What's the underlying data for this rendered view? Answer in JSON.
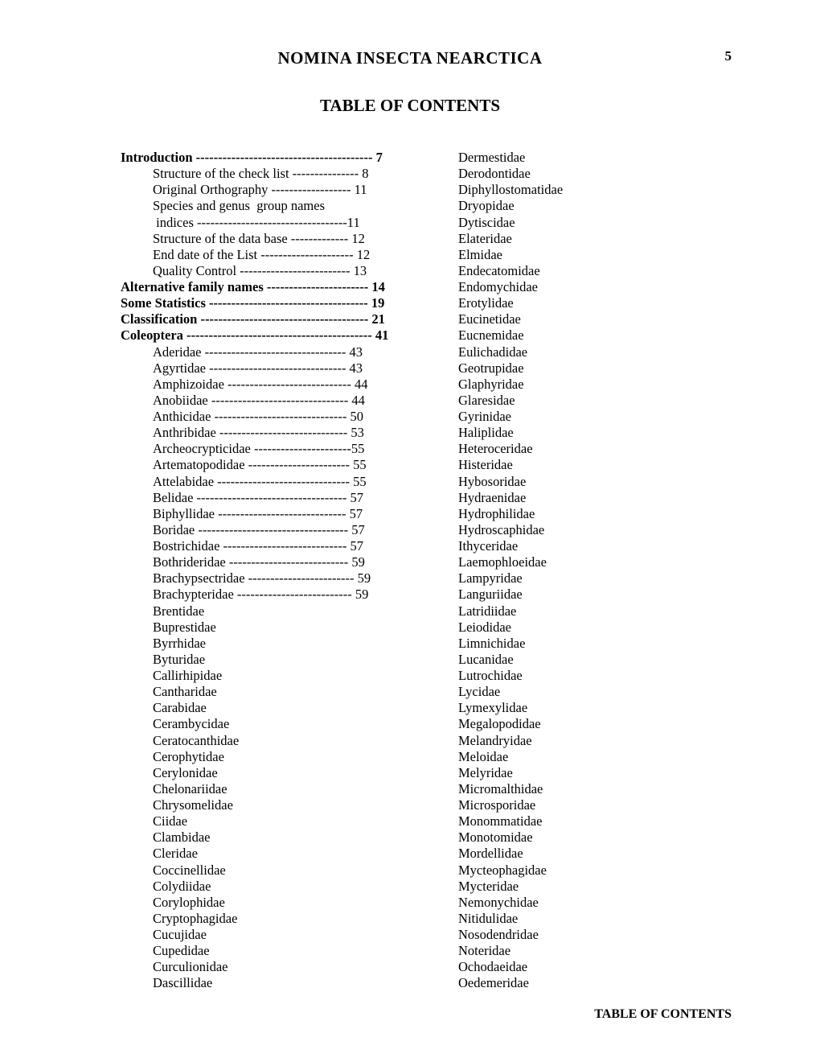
{
  "header_title": "NOMINA INSECTA NEARCTICA",
  "page_number": "5",
  "subtitle": "TABLE OF CONTENTS",
  "footer": "TABLE OF CONTENTS",
  "left_column": [
    {
      "label": "Introduction",
      "page": "7",
      "bold": true,
      "indent": false,
      "dashes": 40
    },
    {
      "label": "Structure of the check list",
      "page": "8",
      "bold": false,
      "indent": true,
      "dashes": 15
    },
    {
      "label": "Original Orthography",
      "page": "11",
      "bold": false,
      "indent": true,
      "dashes": 18
    },
    {
      "label": "Species and genus  group names",
      "page": null,
      "bold": false,
      "indent": true,
      "dashes": 0
    },
    {
      "label": " indices",
      "page": "11",
      "bold": false,
      "indent": true,
      "dashes": 34,
      "nospace": true
    },
    {
      "label": "Structure of the data base",
      "page": "12",
      "bold": false,
      "indent": true,
      "dashes": 13
    },
    {
      "label": "End date of the List",
      "page": "12",
      "bold": false,
      "indent": true,
      "dashes": 21
    },
    {
      "label": "Quality Control",
      "page": "13",
      "bold": false,
      "indent": true,
      "dashes": 25
    },
    {
      "label": "Alternative family names",
      "page": "14",
      "bold": true,
      "indent": false,
      "dashes": 23
    },
    {
      "label": "Some Statistics",
      "page": "19",
      "bold": true,
      "indent": false,
      "dashes": 36
    },
    {
      "label": "Classification",
      "page": "21",
      "bold": true,
      "indent": false,
      "dashes": 38
    },
    {
      "label": "Coleoptera",
      "page": "41",
      "bold": true,
      "indent": false,
      "dashes": 42
    },
    {
      "label": "Aderidae",
      "page": "43",
      "bold": false,
      "indent": true,
      "dashes": 32
    },
    {
      "label": "Agyrtidae",
      "page": "43",
      "bold": false,
      "indent": true,
      "dashes": 31
    },
    {
      "label": "Amphizoidae",
      "page": "44",
      "bold": false,
      "indent": true,
      "dashes": 28
    },
    {
      "label": "Anobiidae",
      "page": "44",
      "bold": false,
      "indent": true,
      "dashes": 31
    },
    {
      "label": "Anthicidae",
      "page": "50",
      "bold": false,
      "indent": true,
      "dashes": 30
    },
    {
      "label": "Anthribidae",
      "page": "53",
      "bold": false,
      "indent": true,
      "dashes": 29
    },
    {
      "label": "Archeocrypticidae",
      "page": "55",
      "bold": false,
      "indent": true,
      "dashes": 22,
      "nospace": true
    },
    {
      "label": "Artematopodidae",
      "page": "55",
      "bold": false,
      "indent": true,
      "dashes": 23
    },
    {
      "label": "Attelabidae",
      "page": "55",
      "bold": false,
      "indent": true,
      "dashes": 30
    },
    {
      "label": "Belidae",
      "page": "57",
      "bold": false,
      "indent": true,
      "dashes": 34
    },
    {
      "label": "Biphyllidae",
      "page": "57",
      "bold": false,
      "indent": true,
      "dashes": 29
    },
    {
      "label": "Boridae",
      "page": "57",
      "bold": false,
      "indent": true,
      "dashes": 34
    },
    {
      "label": "Bostrichidae",
      "page": "57",
      "bold": false,
      "indent": true,
      "dashes": 28
    },
    {
      "label": "Bothrideridae",
      "page": "59",
      "bold": false,
      "indent": true,
      "dashes": 27
    },
    {
      "label": "Brachypsectridae",
      "page": "59",
      "bold": false,
      "indent": true,
      "dashes": 24
    },
    {
      "label": "Brachypteridae",
      "page": "59",
      "bold": false,
      "indent": true,
      "dashes": 26
    },
    {
      "label": "Brentidae",
      "page": null,
      "bold": false,
      "indent": true,
      "dashes": 0
    },
    {
      "label": "Buprestidae",
      "page": null,
      "bold": false,
      "indent": true,
      "dashes": 0
    },
    {
      "label": "Byrrhidae",
      "page": null,
      "bold": false,
      "indent": true,
      "dashes": 0
    },
    {
      "label": "Byturidae",
      "page": null,
      "bold": false,
      "indent": true,
      "dashes": 0
    },
    {
      "label": "Callirhipidae",
      "page": null,
      "bold": false,
      "indent": true,
      "dashes": 0
    },
    {
      "label": "Cantharidae",
      "page": null,
      "bold": false,
      "indent": true,
      "dashes": 0
    },
    {
      "label": "Carabidae",
      "page": null,
      "bold": false,
      "indent": true,
      "dashes": 0
    },
    {
      "label": "Cerambycidae",
      "page": null,
      "bold": false,
      "indent": true,
      "dashes": 0
    },
    {
      "label": "Ceratocanthidae",
      "page": null,
      "bold": false,
      "indent": true,
      "dashes": 0
    },
    {
      "label": "Cerophytidae",
      "page": null,
      "bold": false,
      "indent": true,
      "dashes": 0
    },
    {
      "label": "Cerylonidae",
      "page": null,
      "bold": false,
      "indent": true,
      "dashes": 0
    },
    {
      "label": "Chelonariidae",
      "page": null,
      "bold": false,
      "indent": true,
      "dashes": 0
    },
    {
      "label": "Chrysomelidae",
      "page": null,
      "bold": false,
      "indent": true,
      "dashes": 0
    },
    {
      "label": "Ciidae",
      "page": null,
      "bold": false,
      "indent": true,
      "dashes": 0
    },
    {
      "label": "Clambidae",
      "page": null,
      "bold": false,
      "indent": true,
      "dashes": 0
    },
    {
      "label": "Cleridae",
      "page": null,
      "bold": false,
      "indent": true,
      "dashes": 0
    },
    {
      "label": "Coccinellidae",
      "page": null,
      "bold": false,
      "indent": true,
      "dashes": 0
    },
    {
      "label": "Colydiidae",
      "page": null,
      "bold": false,
      "indent": true,
      "dashes": 0
    },
    {
      "label": "Corylophidae",
      "page": null,
      "bold": false,
      "indent": true,
      "dashes": 0
    },
    {
      "label": "Cryptophagidae",
      "page": null,
      "bold": false,
      "indent": true,
      "dashes": 0
    },
    {
      "label": "Cucujidae",
      "page": null,
      "bold": false,
      "indent": true,
      "dashes": 0
    },
    {
      "label": "Cupedidae",
      "page": null,
      "bold": false,
      "indent": true,
      "dashes": 0
    },
    {
      "label": "Curculionidae",
      "page": null,
      "bold": false,
      "indent": true,
      "dashes": 0
    },
    {
      "label": "Dascillidae",
      "page": null,
      "bold": false,
      "indent": true,
      "dashes": 0
    }
  ],
  "right_column": [
    "Dermestidae",
    "Derodontidae",
    "Diphyllostomatidae",
    "Dryopidae",
    "Dytiscidae",
    "Elateridae",
    "Elmidae",
    "Endecatomidae",
    "Endomychidae",
    "Erotylidae",
    "Eucinetidae",
    "Eucnemidae",
    "Eulichadidae",
    "Geotrupidae",
    "Glaphyridae",
    "Glaresidae",
    "Gyrinidae",
    "Haliplidae",
    "Heteroceridae",
    "Histeridae",
    "Hybosoridae",
    "Hydraenidae",
    "Hydrophilidae",
    "Hydroscaphidae",
    "Ithyceridae",
    "Laemophloeidae",
    "Lampyridae",
    "Languriidae",
    "Latridiidae",
    "Leiodidae",
    "Limnichidae",
    "Lucanidae",
    "Lutrochidae",
    "Lycidae",
    "Lymexylidae",
    "Megalopodidae",
    "Melandryidae",
    "Meloidae",
    "Melyridae",
    "Micromalthidae",
    "Microsporidae",
    "Monommatidae",
    "Monotomidae",
    "Mordellidae",
    "Mycteophagidae",
    "Mycteridae",
    "Nemonychidae",
    "Nitidulidae",
    "Nosodendridae",
    "Noteridae",
    "Ochodaeidae",
    "Oedemeridae"
  ]
}
